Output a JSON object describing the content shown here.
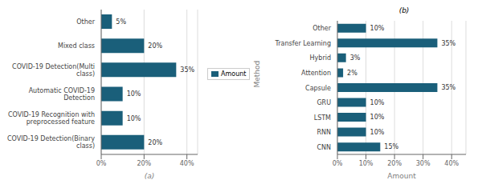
{
  "chart_data": [
    {
      "type": "bar",
      "orientation": "horizontal",
      "categories": [
        "COVID-19 Detection(Binary\nclass)",
        "COVID-19 Recognition with\npreprocessed feature",
        "Automatic COVID-19\nDetection",
        "COVID-19 Detection(Multi\nclass)",
        "Mixed class",
        "Other"
      ],
      "series": [
        {
          "name": "Amount",
          "color": "#1a5f7a",
          "values": [
            20,
            10,
            10,
            35,
            20,
            5
          ],
          "value_labels": [
            "20%",
            "10%",
            "10%",
            "35%",
            "20%",
            "5%"
          ]
        }
      ],
      "xlim": [
        0,
        45
      ],
      "xticks": [
        {
          "value": 0,
          "label": "0%"
        },
        {
          "value": 20,
          "label": "20%"
        },
        {
          "value": 40,
          "label": "40%"
        }
      ],
      "xlabel": "(a)",
      "grid": true,
      "legend": "right",
      "data_labels": true
    },
    {
      "type": "bar",
      "orientation": "horizontal",
      "title": "(b)",
      "categories": [
        "CNN",
        "RNN",
        "LSTM",
        "GRU",
        "Capsule",
        "Attention",
        "Hybrid",
        "Transfer Learning",
        "Other"
      ],
      "values": [
        15,
        10,
        10,
        10,
        35,
        2,
        3,
        35,
        10
      ],
      "value_labels": [
        "15%",
        "10%",
        "10%",
        "10%",
        "35%",
        "2%",
        "3%",
        "35%",
        "10%"
      ],
      "color": "#1a5f7a",
      "xlim": [
        0,
        45
      ],
      "xticks": [
        {
          "value": 0,
          "label": "0%"
        },
        {
          "value": 10,
          "label": "10%"
        },
        {
          "value": 20,
          "label": "20%"
        },
        {
          "value": 30,
          "label": "30%"
        },
        {
          "value": 40,
          "label": "40%"
        }
      ],
      "xlabel": "Amount",
      "ylabel": "Method",
      "grid": true,
      "data_labels": true
    }
  ]
}
